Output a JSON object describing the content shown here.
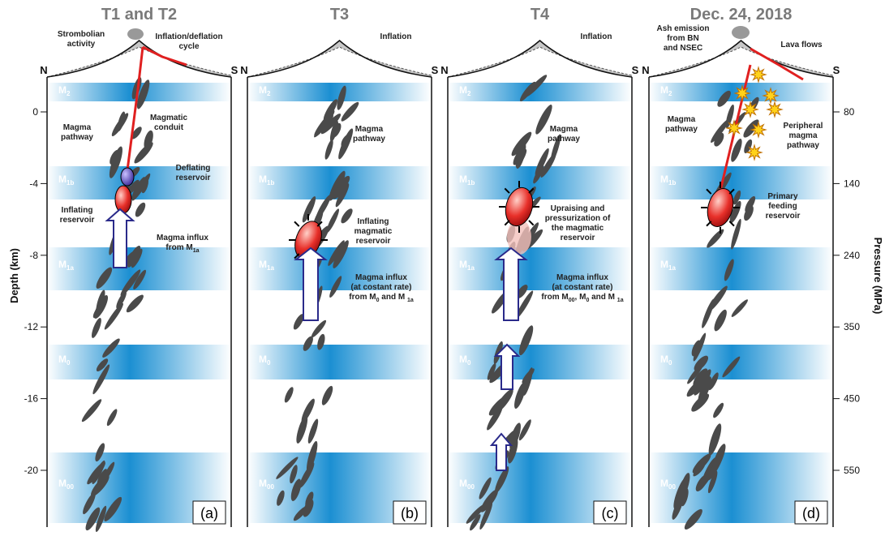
{
  "axes": {
    "depth_label": "Depth (km)",
    "depth_ticks": [
      0,
      -4,
      -8,
      -12,
      -16,
      -20
    ],
    "pressure_label": "Pressure (MPa)",
    "pressure_ticks": [
      80,
      140,
      240,
      350,
      450,
      550
    ]
  },
  "compass": {
    "north": "N",
    "south": "S"
  },
  "layers": [
    {
      "letter": "M",
      "sub": "2"
    },
    {
      "letter": "M",
      "sub": "1b"
    },
    {
      "letter": "M",
      "sub": "1a"
    },
    {
      "letter": "M",
      "sub": "0"
    },
    {
      "letter": "M",
      "sub": "00"
    }
  ],
  "panels": [
    {
      "title": "T1 and T2",
      "label": "(a)",
      "annotations": [
        {
          "lines": [
            "Strombolian",
            "activity"
          ]
        },
        {
          "lines": [
            "Inflation/deflation",
            "cycle"
          ]
        },
        {
          "lines": [
            "Magmatic",
            "conduit"
          ]
        },
        {
          "lines": [
            "Magma",
            "pathway"
          ]
        },
        {
          "lines": [
            "Deflating",
            "reservoir"
          ]
        },
        {
          "lines": [
            "Inflating",
            "reservoir"
          ]
        },
        {
          "lines": [
            "Magma influx",
            [
              "from M",
              "1a"
            ]
          ]
        }
      ]
    },
    {
      "title": "T3",
      "label": "(b)",
      "annotations": [
        {
          "lines": [
            "Inflation"
          ]
        },
        {
          "lines": [
            "Magma",
            "pathway"
          ]
        },
        {
          "lines": [
            "Inflating",
            "magmatic",
            "reservoir"
          ]
        },
        {
          "lines": [
            "Magma influx",
            "(at costant rate)",
            [
              "from M",
              "0",
              " and M ",
              "1a"
            ]
          ]
        }
      ]
    },
    {
      "title": "T4",
      "label": "(c)",
      "annotations": [
        {
          "lines": [
            "Inflation"
          ]
        },
        {
          "lines": [
            "Magma",
            "pathway"
          ]
        },
        {
          "lines": [
            "Upraising and",
            "pressurization of",
            "the magmatic",
            "reservoir"
          ]
        },
        {
          "lines": [
            "Magma influx",
            "(at costant rate)",
            [
              "from M",
              "00",
              ", M",
              "0",
              " and M ",
              "1a"
            ]
          ]
        }
      ]
    },
    {
      "title": "Dec. 24, 2018",
      "label": "(d)",
      "annotations": [
        {
          "lines": [
            "Ash emission",
            "from BN",
            "and NSEC"
          ]
        },
        {
          "lines": [
            "Lava flows"
          ]
        },
        {
          "lines": [
            "Magma",
            "pathway"
          ]
        },
        {
          "lines": [
            "Peripheral",
            "magma",
            "pathway"
          ]
        },
        {
          "lines": [
            "Primary",
            "feeding",
            "reservoir"
          ]
        }
      ]
    }
  ]
}
